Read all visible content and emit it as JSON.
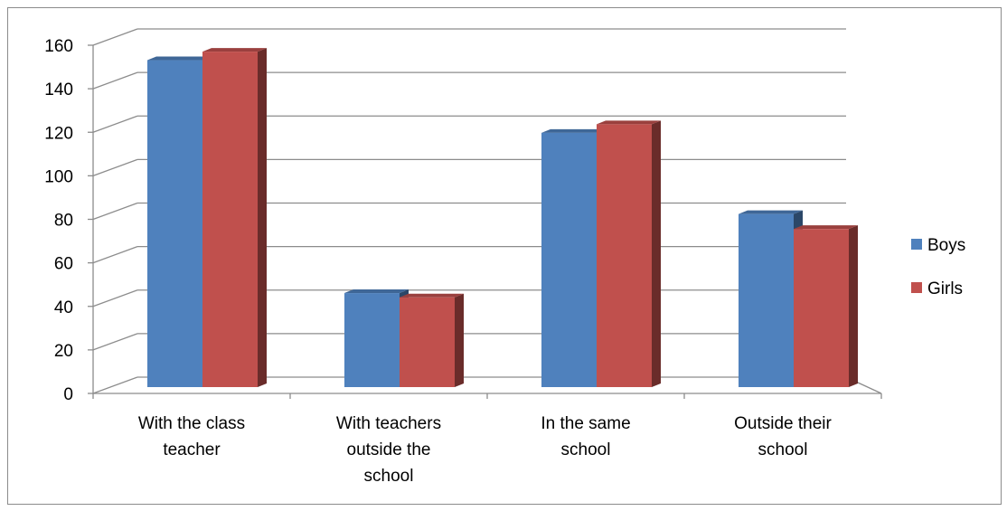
{
  "chart_data": {
    "type": "bar",
    "style": "3d-clustered-column",
    "categories": [
      [
        "With  the class",
        "teacher"
      ],
      [
        "With teachers",
        "outside the",
        "school"
      ],
      [
        "In the same",
        "school"
      ],
      [
        "Outside their",
        "school"
      ]
    ],
    "series": [
      {
        "name": "Boys",
        "color": "#4F81BD",
        "values": [
          153,
          44,
          119,
          81
        ]
      },
      {
        "name": "Girls",
        "color": "#C0504D",
        "values": [
          157,
          42,
          123,
          74
        ]
      }
    ],
    "ylim": [
      0,
      160
    ],
    "yticks": [
      "0",
      "20",
      "40",
      "60",
      "80",
      "100",
      "120",
      "140",
      "160"
    ],
    "grid": true,
    "legend_position": "right"
  }
}
